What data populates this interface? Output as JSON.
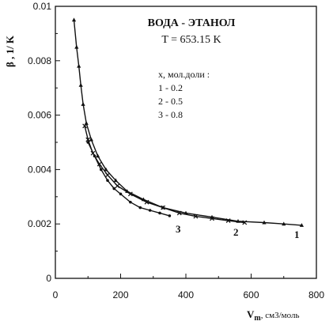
{
  "chart_data": {
    "type": "line",
    "title": "ВОДА - ЭТАНОЛ",
    "subtitle": "T = 653.15 K",
    "xlabel_main": "V",
    "xlabel_sub": "m",
    "xlabel_units": ", см3/моль",
    "ylabel": "β , 1/ K",
    "xlim": [
      0,
      800
    ],
    "ylim": [
      0,
      0.01
    ],
    "x_ticks": [
      "0",
      "200",
      "400",
      "600",
      "800"
    ],
    "x_tick_values": [
      0,
      200,
      400,
      600,
      800
    ],
    "y_ticks": [
      "0",
      "0.002",
      "0.004",
      "0.006",
      "0.008",
      "0.01"
    ],
    "y_tick_values": [
      0,
      0.002,
      0.004,
      0.006,
      0.008,
      0.01
    ],
    "grid": false,
    "legend": {
      "header": "x, мол.доли :",
      "items": [
        "1 - 0.2",
        "2 - 0.5",
        "3 - 0.8"
      ]
    },
    "series": [
      {
        "label": "1",
        "marker": "triangle",
        "x": [
          57,
          65,
          72,
          78,
          85,
          95,
          110,
          130,
          155,
          185,
          220,
          270,
          330,
          400,
          480,
          560,
          640,
          700,
          755
        ],
        "y": [
          0.0095,
          0.0085,
          0.0078,
          0.0071,
          0.0064,
          0.0057,
          0.0051,
          0.0045,
          0.004,
          0.0036,
          0.0032,
          0.0029,
          0.0026,
          0.0024,
          0.00225,
          0.0021,
          0.00205,
          0.002,
          0.00195
        ]
      },
      {
        "label": "2",
        "marker": "x",
        "x": [
          90,
          100,
          115,
          135,
          160,
          190,
          230,
          280,
          330,
          380,
          430,
          480,
          530,
          580
        ],
        "y": [
          0.0056,
          0.0051,
          0.0046,
          0.0042,
          0.0038,
          0.0034,
          0.0031,
          0.0028,
          0.0026,
          0.0024,
          0.00228,
          0.0022,
          0.00212,
          0.00205
        ]
      },
      {
        "label": "3",
        "marker": "dot",
        "x": [
          100,
          120,
          140,
          160,
          180,
          200,
          230,
          260,
          290,
          320,
          350
        ],
        "y": [
          0.005,
          0.0045,
          0.004,
          0.0036,
          0.0033,
          0.0031,
          0.0028,
          0.0026,
          0.0025,
          0.0024,
          0.0023
        ]
      }
    ]
  }
}
